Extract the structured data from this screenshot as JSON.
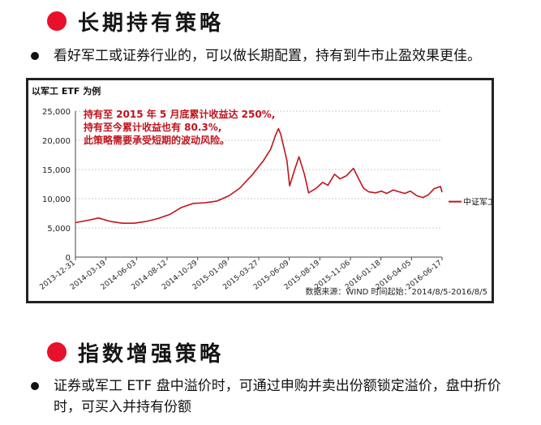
{
  "section1": {
    "title": "长期持有策略",
    "bullet": "看好军工或证券行业的，可以做长期配置，持有到牛市止盈效果更佳。"
  },
  "section2": {
    "title": "指数增强策略",
    "bullet": "证券或军工 ETF 盘中溢价时，可通过申购并卖出份额锁定溢价，盘中折价时，可买入并持有份额"
  },
  "colors": {
    "accent": "#e8102a",
    "line": "#c0141c",
    "annotation": "#c0141c"
  },
  "chart_data": {
    "type": "line",
    "title": "以军工 ETF 为例",
    "xlabel": "",
    "ylabel": "",
    "ylim": [
      0,
      25000
    ],
    "yticks": [
      "0",
      "5,000",
      "10,000",
      "15,000",
      "20,000",
      "25,000"
    ],
    "xticks": [
      "2013-12-31",
      "2014-03-19",
      "2014-06-03",
      "2014-08-12",
      "2014-10-29",
      "2015-01-09",
      "2015-03-27",
      "2015-06-09",
      "2015-08-19",
      "2015-11-06",
      "2016-01-18",
      "2016-04-05",
      "2016-06-17"
    ],
    "grid": true,
    "legend": "right",
    "annotations": [
      "持有至 2015 年 5 月底累计收益达 250%,",
      "持有至今累计收益也有 80.3%,",
      "此策略需要承受短期的波动风险。"
    ],
    "source": "数据来源：WIND 时间起始：2014/8/5-2016/8/5",
    "series": [
      {
        "name": "中证军工",
        "x": [
          "2013-12-31",
          "2014-02-01",
          "2014-03-01",
          "2014-04-01",
          "2014-05-01",
          "2014-06-01",
          "2014-07-01",
          "2014-08-01",
          "2014-09-01",
          "2014-10-01",
          "2014-11-01",
          "2014-12-01",
          "2015-01-01",
          "2015-02-01",
          "2015-03-01",
          "2015-04-01",
          "2015-05-01",
          "2015-05-20",
          "2015-06-01",
          "2015-06-09",
          "2015-06-15",
          "2015-07-01",
          "2015-07-08",
          "2015-07-20",
          "2015-08-01",
          "2015-08-15",
          "2015-08-26",
          "2015-09-15",
          "2015-10-01",
          "2015-10-15",
          "2015-11-01",
          "2015-11-15",
          "2015-12-01",
          "2015-12-20",
          "2016-01-01",
          "2016-01-15",
          "2016-01-28",
          "2016-02-15",
          "2016-03-01",
          "2016-03-15",
          "2016-04-01",
          "2016-04-15",
          "2016-05-01",
          "2016-05-15",
          "2016-06-01",
          "2016-06-17",
          "2016-07-01",
          "2016-07-15",
          "2016-08-01",
          "2016-08-05"
        ],
        "values": [
          5900,
          6300,
          6700,
          6100,
          5800,
          5800,
          6100,
          6600,
          7300,
          8500,
          9200,
          9300,
          9600,
          10500,
          11800,
          14000,
          16500,
          18500,
          20800,
          22000,
          21000,
          16500,
          12200,
          14800,
          17200,
          14200,
          11000,
          11800,
          12800,
          12300,
          14200,
          13400,
          13900,
          15200,
          13600,
          11800,
          11200,
          11000,
          11300,
          10900,
          11500,
          11200,
          10900,
          11300,
          10500,
          10200,
          10700,
          11700,
          12100,
          11100
        ]
      }
    ]
  }
}
